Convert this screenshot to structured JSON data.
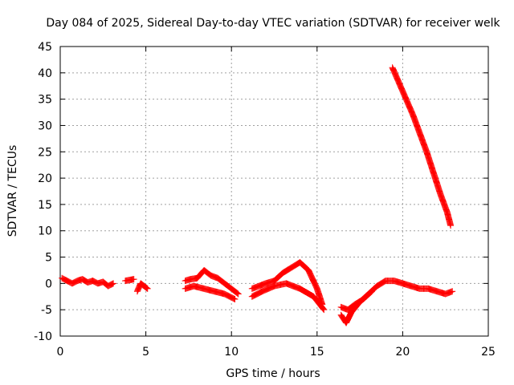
{
  "chart_data": {
    "type": "scatter",
    "title": "Day 084 of 2025, Sidereal Day-to-day VTEC variation (SDTVAR) for receiver welk",
    "xlabel": "GPS time / hours",
    "ylabel": "SDTVAR / TECUs",
    "xlim": [
      0,
      25
    ],
    "ylim": [
      -10,
      45
    ],
    "xticks": [
      0,
      5,
      10,
      15,
      20,
      25
    ],
    "yticks": [
      -10,
      -5,
      0,
      5,
      10,
      15,
      20,
      25,
      30,
      35,
      40,
      45
    ],
    "grid": true,
    "marker": "+",
    "series": [
      {
        "name": "SDTVAR",
        "color": "#ff0000",
        "segments": [
          {
            "x": [
              0.1,
              0.4,
              0.7,
              1.0,
              1.3,
              1.6,
              1.9,
              2.2,
              2.5,
              2.8,
              3.1
            ],
            "y": [
              1.0,
              0.5,
              0.0,
              0.5,
              0.8,
              0.2,
              0.5,
              0.0,
              0.3,
              -0.5,
              0.0
            ]
          },
          {
            "x": [
              3.8,
              4.3
            ],
            "y": [
              0.5,
              0.8
            ]
          },
          {
            "x": [
              4.5,
              4.7,
              4.9,
              5.1
            ],
            "y": [
              -1.5,
              0.0,
              -0.5,
              -1.0
            ]
          },
          {
            "x": [
              7.3,
              7.6,
              8.0,
              8.4,
              8.8,
              9.2,
              9.6,
              10.0,
              10.4
            ],
            "y": [
              0.5,
              0.8,
              1.0,
              2.5,
              1.5,
              1.0,
              0.0,
              -1.0,
              -2.0
            ]
          },
          {
            "x": [
              7.3,
              7.8,
              8.4,
              9.0,
              9.6,
              10.2
            ],
            "y": [
              -1.0,
              -0.5,
              -1.0,
              -1.5,
              -2.0,
              -3.0
            ]
          },
          {
            "x": [
              11.2,
              11.6,
              12.0,
              12.5,
              13.0,
              13.5,
              14.0,
              14.5,
              15.0,
              15.3
            ],
            "y": [
              -1.0,
              -0.5,
              0.0,
              0.5,
              2.0,
              3.0,
              4.0,
              2.5,
              -1.0,
              -4.0
            ]
          },
          {
            "x": [
              11.2,
              11.8,
              12.5,
              13.2,
              14.0,
              14.8,
              15.4
            ],
            "y": [
              -2.5,
              -1.5,
              -0.5,
              0.0,
              -1.0,
              -2.5,
              -5.0
            ]
          },
          {
            "x": [
              16.4,
              16.7,
              17.0,
              17.5,
              18.0,
              18.5,
              19.0,
              19.5,
              20.0,
              20.5,
              21.0,
              21.5,
              22.0,
              22.5,
              22.9
            ],
            "y": [
              -6.0,
              -7.5,
              -5.5,
              -3.5,
              -2.0,
              -0.5,
              0.5,
              0.5,
              0.0,
              -0.5,
              -1.0,
              -1.0,
              -1.5,
              -2.0,
              -1.5
            ]
          },
          {
            "x": [
              16.4,
              16.8,
              17.2,
              17.7,
              18.2
            ],
            "y": [
              -4.5,
              -5.0,
              -4.0,
              -3.0,
              -1.5
            ]
          },
          {
            "x": [
              19.4,
              19.8,
              20.2,
              20.6,
              21.0,
              21.4,
              21.8,
              22.2,
              22.6,
              22.8
            ],
            "y": [
              41.0,
              38.0,
              35.0,
              32.0,
              28.5,
              25.0,
              21.0,
              17.0,
              13.5,
              11.0
            ]
          }
        ]
      }
    ]
  }
}
